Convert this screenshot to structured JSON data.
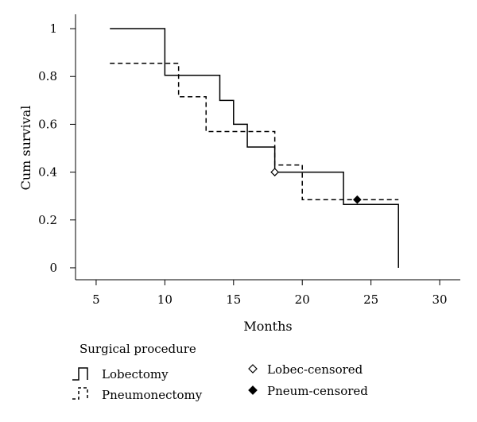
{
  "chart_data": {
    "type": "line",
    "subtype": "kaplan-meier-step",
    "xlabel": "Months",
    "ylabel": "Cum survival",
    "xlim": [
      3.5,
      31.5
    ],
    "ylim": [
      -0.05,
      1.06
    ],
    "x_ticks": [
      5,
      10,
      15,
      20,
      25,
      30
    ],
    "y_ticks": [
      0,
      0.2,
      0.4,
      0.6,
      0.8,
      1
    ],
    "y_tick_labels": [
      "0",
      "0.2",
      "0.4",
      "0.6",
      "0.8",
      "1"
    ],
    "grid": false,
    "legend_title": "Surgical procedure",
    "series": [
      {
        "name": "Lobectomy",
        "style": "solid",
        "color": "#000000",
        "steps": [
          [
            6,
            1.0
          ],
          [
            10,
            0.805
          ],
          [
            14,
            0.7
          ],
          [
            15,
            0.6
          ],
          [
            16,
            0.505
          ],
          [
            18,
            0.4
          ],
          [
            23,
            0.265
          ],
          [
            27,
            0.0
          ]
        ],
        "end_x": 27
      },
      {
        "name": "Pneumonectomy",
        "style": "dashed",
        "color": "#000000",
        "steps": [
          [
            6,
            0.855
          ],
          [
            11,
            0.715
          ],
          [
            13,
            0.57
          ],
          [
            18,
            0.43
          ],
          [
            20,
            0.285
          ]
        ],
        "end_x": 27
      }
    ],
    "censored": [
      {
        "name": "Lobec-censored",
        "marker": "open-diamond",
        "points": [
          [
            18,
            0.4
          ]
        ]
      },
      {
        "name": "Pneum-censored",
        "marker": "filled-diamond",
        "points": [
          [
            24,
            0.285
          ]
        ]
      }
    ]
  }
}
